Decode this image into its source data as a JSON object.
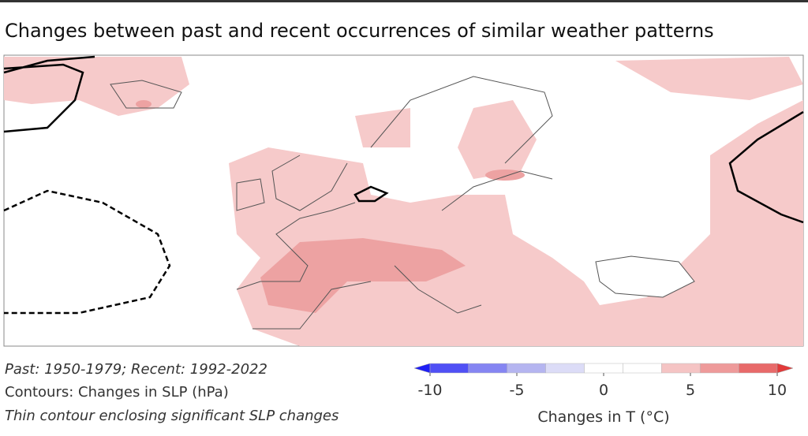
{
  "title": "Changes between past and recent occurrences of similar weather patterns",
  "notes": [
    "Past: 1950-1979; Recent: 1992-2022",
    "Contours: Changes in SLP (hPa)",
    "Thin contour enclosing significant SLP changes"
  ],
  "colorbar": {
    "label": "Changes in T (°C)",
    "vlim": [
      -10,
      10
    ],
    "ticks": [
      -10,
      -5,
      0,
      5,
      10
    ],
    "colors": [
      "#1f1ff5",
      "#5050f5",
      "#8585f2",
      "#b5b5f0",
      "#dcdcf7",
      "#ffffff",
      "#ffffff",
      "#f5c4c4",
      "#ee9a9a",
      "#e86a6a",
      "#e23a3a"
    ]
  }
}
